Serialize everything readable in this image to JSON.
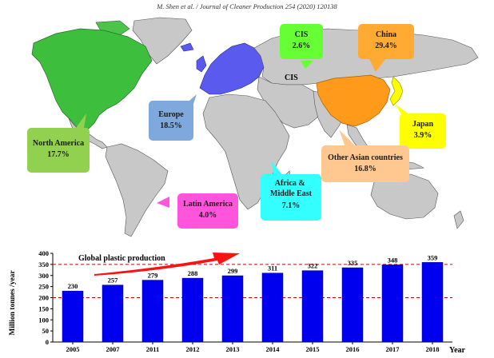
{
  "header": {
    "citation": "M. Shen et al. / Journal of Cleaner Production 254 (2020) 120138"
  },
  "map": {
    "cis_label": "CIS",
    "regions": [
      {
        "name": "North America",
        "value": "17.7%",
        "color": "#92d050"
      },
      {
        "name": "Europe",
        "value": "18.5%",
        "color": "#7fa9dd"
      },
      {
        "name": "CIS",
        "value": "2.6%",
        "color": "#66ff33"
      },
      {
        "name": "China",
        "value": "29.4%",
        "color": "#ffaa33"
      },
      {
        "name": "Japan",
        "value": "3.9%",
        "color": "#ffff00"
      },
      {
        "name": "Other Asian countries",
        "value": "16.8%",
        "color": "#ffc891"
      },
      {
        "name": "Africa & Middle East",
        "value": "7.1%",
        "color": "#33ffff"
      },
      {
        "name": "Latin America",
        "value": "4.0%",
        "color": "#ff55dd"
      }
    ]
  },
  "chart_data": {
    "type": "bar",
    "categories": [
      "2005",
      "2007",
      "2011",
      "2012",
      "2013",
      "2014",
      "2015",
      "2016",
      "2017",
      "2018"
    ],
    "values": [
      230,
      257,
      279,
      288,
      299,
      311,
      322,
      335,
      348,
      359
    ],
    "data_labels": [
      "230",
      "257",
      "279",
      "288",
      "299",
      "311",
      "322",
      "335",
      "348",
      "359"
    ],
    "annotation": "Global plastic production",
    "xlabel": "Year",
    "ylabel": "Million tonnes /year",
    "ylim": [
      0,
      400
    ],
    "yticks": [
      0,
      50,
      100,
      150,
      200,
      250,
      300,
      350,
      400
    ],
    "reference_lines": [
      200,
      350
    ],
    "bar_color": "#0000ee",
    "reference_line_color": "#cc0000",
    "arrow_color": "#ff1111",
    "grid": false,
    "legend": "none"
  }
}
